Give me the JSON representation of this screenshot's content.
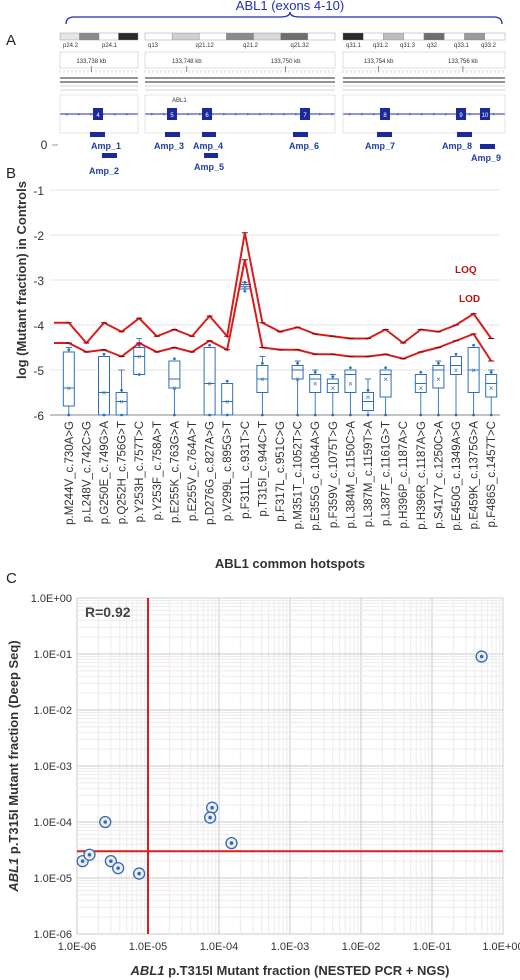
{
  "panel_a": {
    "label": "A",
    "gene_title": "ABL1 (exons 4-10)",
    "bands": [
      [
        "p24.2",
        "p24.1"
      ],
      [
        "q13",
        "q21.12",
        "q21.2",
        "q21.32"
      ],
      [
        "q31.1",
        "q31.2",
        "q31.3",
        "q32",
        "q33.1",
        "q33.2"
      ]
    ],
    "coords": [
      "133,738 kb",
      "133,748 kb",
      "133,750 kb",
      "133,754 kb",
      "133,756 kb"
    ],
    "gene_label": "ABL1",
    "exons": [
      "4",
      "5",
      "6",
      "7",
      "8",
      "9",
      "10"
    ],
    "amplicons": [
      "Amp_1",
      "Amp_2",
      "Amp_3",
      "Amp_4",
      "Amp_5",
      "Amp_6",
      "Amp_7",
      "Amp_8",
      "Amp_9"
    ],
    "top_axis_value": "0"
  },
  "chart_data": [
    {
      "panel": "B",
      "type": "box",
      "ylabel": "log (Mutant fraction) in Controls",
      "xlabel": "ABL1 common hotspots",
      "ylim": [
        -6,
        -1
      ],
      "yticks": [
        "-1",
        "-2",
        "-3",
        "-4",
        "-5",
        "-6"
      ],
      "categories": [
        "p.M244V_c.730A>G",
        "p.L248V_c.742C>G",
        "p.G250E_c.749G>A",
        "p.Q252H_c.756G>T",
        "p.Y253H_c.757T>C",
        "p.Y253F_c.758A>T",
        "p.E255K_c.763G>A",
        "p.E255V_c.764A>T",
        "p.D276G_c.827A>G",
        "p.V299L_c.895G>T",
        "p.F311L_c.931T>C",
        "p.T315I_c.944C>T",
        "p.F317L_c.951C>G",
        "p.M351T_c.1052T>C",
        "p.E355G_c.1064A>G",
        "p.F359V_c.1075T>G",
        "p.L384M_c.1150C>A",
        "p.L387M_c.1159T>A",
        "p.L387F_c.1161G>T",
        "p.H396P_c.1187A>C",
        "p.H396R_c.1187A>G",
        "p.S417Y_c.1250C>A",
        "p.E450G_c.1349A>G",
        "p.E459K_c.1375G>A",
        "p.F486S_c.1457T>C"
      ],
      "boxes": [
        {
          "q1": -5.8,
          "median": -5.4,
          "q3": -4.6,
          "lo": -6.0,
          "hi": -4.5,
          "mean": -5.4
        },
        null,
        {
          "q1": -6.0,
          "median": -5.5,
          "q3": -4.7,
          "lo": -6.0,
          "hi": -4.7,
          "mean": -5.5
        },
        {
          "q1": -6.0,
          "median": -5.7,
          "q3": -5.5,
          "lo": -6.0,
          "hi": -5.0,
          "mean": -5.7
        },
        {
          "q1": -5.1,
          "median": -4.7,
          "q3": -4.5,
          "lo": -5.1,
          "hi": -4.3,
          "mean": -4.7
        },
        null,
        {
          "q1": -5.4,
          "median": -5.2,
          "q3": -4.8,
          "lo": -6.0,
          "hi": -4.8,
          "mean": -5.4
        },
        null,
        {
          "q1": -6.0,
          "median": -5.3,
          "q3": -4.5,
          "lo": -6.0,
          "hi": -4.5,
          "mean": -5.3
        },
        {
          "q1": -6.0,
          "median": -5.7,
          "q3": -5.3,
          "lo": -6.0,
          "hi": -5.3,
          "mean": -5.7
        },
        {
          "q1": -3.2,
          "median": -3.15,
          "q3": -3.1,
          "lo": -3.25,
          "hi": -3.05,
          "mean": -3.15
        },
        {
          "q1": -5.5,
          "median": -5.2,
          "q3": -4.9,
          "lo": -6.0,
          "hi": -4.7,
          "mean": -5.2
        },
        null,
        {
          "q1": -5.2,
          "median": -5.0,
          "q3": -4.9,
          "lo": -6.0,
          "hi": -4.8,
          "mean": -5.2
        },
        {
          "q1": -5.5,
          "median": -5.2,
          "q3": -5.1,
          "lo": -6.0,
          "hi": -5.0,
          "mean": -5.3
        },
        {
          "q1": -5.5,
          "median": -5.3,
          "q3": -5.2,
          "lo": -6.0,
          "hi": -5.1,
          "mean": -5.4
        },
        {
          "q1": -5.5,
          "median": -5.1,
          "q3": -5.0,
          "lo": -6.0,
          "hi": -5.0,
          "mean": -5.3
        },
        {
          "q1": -5.9,
          "median": -5.7,
          "q3": -5.5,
          "lo": -6.0,
          "hi": -5.2,
          "mean": -5.6
        },
        {
          "q1": -5.6,
          "median": -5.1,
          "q3": -5.0,
          "lo": -6.0,
          "hi": -5.0,
          "mean": -5.2
        },
        null,
        {
          "q1": -5.5,
          "median": -5.3,
          "q3": -5.1,
          "lo": -6.0,
          "hi": -5.1,
          "mean": -5.4
        },
        {
          "q1": -5.4,
          "median": -5.0,
          "q3": -4.9,
          "lo": -6.0,
          "hi": -4.8,
          "mean": -5.2
        },
        {
          "q1": -5.1,
          "median": -4.9,
          "q3": -4.7,
          "lo": -6.0,
          "hi": -4.7,
          "mean": -5.0
        },
        {
          "q1": -5.5,
          "median": -5.0,
          "q3": -4.5,
          "lo": -6.0,
          "hi": -4.5,
          "mean": -5.0
        },
        {
          "q1": -5.6,
          "median": -5.3,
          "q3": -5.1,
          "lo": -6.0,
          "hi": -5.0,
          "mean": -5.4
        }
      ],
      "series": [
        {
          "name": "LOQ",
          "values": [
            -3.95,
            -4.4,
            -3.95,
            -4.15,
            -3.85,
            -4.25,
            -4.1,
            -4.25,
            -3.8,
            -4.25,
            -1.95,
            -3.95,
            -4.15,
            -4.05,
            -4.2,
            -4.25,
            -4.3,
            -4.3,
            -4.1,
            -4.4,
            -4.1,
            -4.15,
            -4.0,
            -3.75,
            -4.3
          ]
        },
        {
          "name": "LOD",
          "values": [
            -4.4,
            -4.6,
            -4.55,
            -4.7,
            -4.4,
            -4.6,
            -4.5,
            -4.6,
            -4.35,
            -4.55,
            -2.55,
            -4.5,
            -4.55,
            -4.55,
            -4.65,
            -4.65,
            -4.7,
            -4.7,
            -4.65,
            -4.75,
            -4.6,
            -4.5,
            -4.35,
            -4.2,
            -4.8
          ]
        }
      ],
      "colors": {
        "box": "#2f6fb8",
        "limit": "#d71e1e"
      }
    },
    {
      "panel": "C",
      "type": "scatter",
      "annotation": "R=0.92",
      "xlabel_italic": "ABL1",
      "xlabel_rest": " p.T315I Mutant fraction (NESTED PCR + NGS)",
      "ylabel_italic": "ABL1",
      "ylabel_rest": " p.T315I Mutant fraction (Deep Seq)",
      "xscale": "log",
      "yscale": "log",
      "xlim": [
        1e-06,
        1
      ],
      "ylim": [
        1e-06,
        1
      ],
      "xticks": [
        "1.0E-06",
        "1.0E-05",
        "1.0E-04",
        "1.0E-03",
        "1.0E-02",
        "1.0E-01",
        "1.0E+00"
      ],
      "yticks": [
        "1.0E+00",
        "1.0E-01",
        "1.0E-02",
        "1.0E-03",
        "1.0E-04",
        "1.0E-05",
        "1.0E-06"
      ],
      "threshold_x": 1e-05,
      "threshold_y": 3e-05,
      "points": [
        [
          0.5,
          0.09
        ],
        [
          8e-05,
          0.00018
        ],
        [
          7.5e-05,
          0.00012
        ],
        [
          0.00015,
          4.2e-05
        ],
        [
          2.5e-06,
          0.0001
        ],
        [
          1.2e-06,
          2e-05
        ],
        [
          1.5e-06,
          2.6e-05
        ],
        [
          3e-06,
          2e-05
        ],
        [
          3.8e-06,
          1.5e-05
        ],
        [
          7.5e-06,
          1.2e-05
        ]
      ],
      "colors": {
        "point": "#3a68a8",
        "threshold": "#e01b1b"
      }
    }
  ],
  "panel_b_label": "B",
  "panel_c_label": "C",
  "legend": {
    "loq": "LOQ",
    "lod": "LOD"
  }
}
